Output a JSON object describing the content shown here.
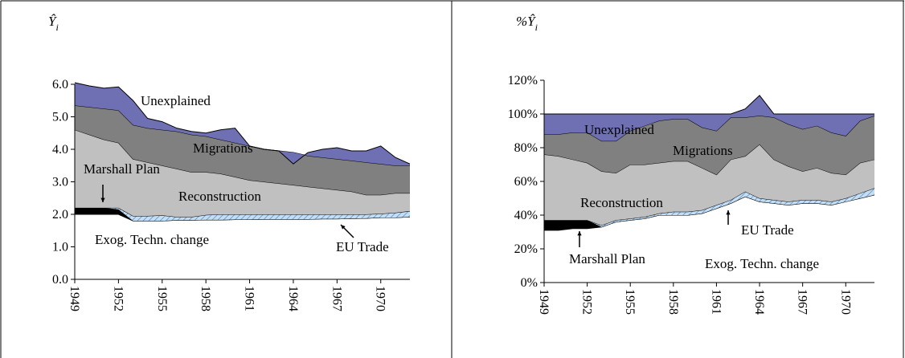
{
  "chart_data": [
    {
      "type": "area",
      "stacked": true,
      "y_title": "Ŷ",
      "y_title_sub": "i",
      "x": [
        1949,
        1950,
        1951,
        1952,
        1953,
        1954,
        1955,
        1956,
        1957,
        1958,
        1959,
        1960,
        1961,
        1962,
        1963,
        1964,
        1965,
        1966,
        1967,
        1968,
        1969,
        1970,
        1971,
        1972
      ],
      "xlim": [
        1949,
        1972
      ],
      "xticks": [
        1949,
        1952,
        1955,
        1958,
        1961,
        1964,
        1967,
        1970
      ],
      "ylim": [
        0,
        6
      ],
      "yticks": [
        {
          "value": 0,
          "label": "0.0"
        },
        {
          "value": 1,
          "label": "1.0"
        },
        {
          "value": 2,
          "label": "2.0"
        },
        {
          "value": 3,
          "label": "3.0"
        },
        {
          "value": 4,
          "label": "4.0"
        },
        {
          "value": 5,
          "label": "5.0"
        },
        {
          "value": 6,
          "label": "6.0"
        }
      ],
      "series": [
        {
          "name": "Exog. Techn. change",
          "color": "#ffffff",
          "values": [
            2.0,
            2.0,
            2.0,
            2.0,
            1.8,
            1.8,
            1.8,
            1.82,
            1.82,
            1.83,
            1.83,
            1.84,
            1.84,
            1.85,
            1.85,
            1.85,
            1.85,
            1.86,
            1.86,
            1.87,
            1.88,
            1.9,
            1.9,
            1.92
          ]
        },
        {
          "name": "Marshall Plan",
          "color": "#000000",
          "values": [
            0.2,
            0.2,
            0.2,
            0.15,
            0,
            0,
            0,
            0,
            0,
            0,
            0,
            0,
            0,
            0,
            0,
            0,
            0,
            0,
            0,
            0,
            0,
            0,
            0,
            0
          ]
        },
        {
          "name": "EU Trade",
          "color": "#c5def2",
          "hatch": true,
          "values": [
            0,
            0,
            0,
            0.05,
            0.15,
            0.15,
            0.17,
            0.1,
            0.1,
            0.15,
            0.17,
            0.16,
            0.16,
            0.15,
            0.15,
            0.15,
            0.15,
            0.14,
            0.14,
            0.13,
            0.12,
            0.12,
            0.15,
            0.18
          ]
        },
        {
          "name": "Reconstruction",
          "color": "#c0c0c0",
          "values": [
            2.4,
            2.25,
            2.1,
            2.0,
            1.75,
            1.65,
            1.53,
            1.48,
            1.38,
            1.32,
            1.25,
            1.15,
            1.05,
            1.0,
            0.95,
            0.9,
            0.85,
            0.8,
            0.75,
            0.7,
            0.6,
            0.58,
            0.6,
            0.55
          ]
        },
        {
          "name": "Migrations",
          "color": "#808080",
          "values": [
            0.75,
            0.85,
            0.95,
            1.0,
            1.05,
            1.05,
            1.1,
            1.15,
            1.15,
            1.1,
            1.05,
            1.05,
            1.05,
            1.0,
            1.0,
            1.0,
            0.95,
            0.95,
            0.95,
            0.95,
            1.0,
            0.95,
            0.85,
            0.85
          ]
        },
        {
          "name": "Unexplained",
          "color": "#6f6fb3",
          "values": [
            0.7,
            0.65,
            0.63,
            0.72,
            0.75,
            0.3,
            0.25,
            0.1,
            0.1,
            0.1,
            0.3,
            0.45,
            0,
            0,
            0,
            -0.35,
            0.1,
            0.25,
            0.35,
            0.3,
            0.35,
            0.55,
            0.25,
            0.05
          ]
        }
      ]
    },
    {
      "type": "area",
      "stacked": true,
      "y_title": "%Ŷ",
      "y_title_sub": "i",
      "x": [
        1949,
        1950,
        1951,
        1952,
        1953,
        1954,
        1955,
        1956,
        1957,
        1958,
        1959,
        1960,
        1961,
        1962,
        1963,
        1964,
        1965,
        1966,
        1967,
        1968,
        1969,
        1970,
        1971,
        1972
      ],
      "xlim": [
        1949,
        1972
      ],
      "xticks": [
        1949,
        1952,
        1955,
        1958,
        1961,
        1964,
        1967,
        1970
      ],
      "ylim": [
        0,
        120
      ],
      "yticks": [
        {
          "value": 0,
          "label": "0%"
        },
        {
          "value": 20,
          "label": "20%"
        },
        {
          "value": 40,
          "label": "40%"
        },
        {
          "value": 60,
          "label": "60%"
        },
        {
          "value": 80,
          "label": "80%"
        },
        {
          "value": 100,
          "label": "100%"
        },
        {
          "value": 120,
          "label": "120%"
        }
      ],
      "series": [
        {
          "name": "Exog. Techn. change",
          "color": "#ffffff",
          "values": [
            31,
            31,
            32,
            32,
            33,
            36,
            37,
            38,
            40,
            40,
            40,
            41,
            44,
            47,
            51,
            48,
            47,
            46,
            47,
            47,
            46,
            48,
            50,
            52
          ]
        },
        {
          "name": "Marshall Plan",
          "color": "#000000",
          "values": [
            6,
            6,
            5,
            5,
            0,
            0,
            0,
            0,
            0,
            0,
            0,
            0,
            0,
            0,
            0,
            0,
            0,
            0,
            0,
            0,
            0,
            0,
            0,
            0
          ]
        },
        {
          "name": "EU Trade",
          "color": "#c5def2",
          "hatch": true,
          "values": [
            0,
            0,
            0,
            0,
            1,
            1,
            1,
            1,
            1,
            2,
            2,
            2,
            2,
            2,
            3,
            2,
            2,
            2,
            2,
            2,
            2,
            2,
            3,
            4
          ]
        },
        {
          "name": "Reconstruction",
          "color": "#c0c0c0",
          "values": [
            39,
            38,
            36,
            34,
            32,
            28,
            32,
            31,
            30,
            30,
            30,
            25,
            18,
            24,
            21,
            32,
            24,
            21,
            17,
            19,
            17,
            14,
            18,
            17
          ]
        },
        {
          "name": "Migrations",
          "color": "#808080",
          "values": [
            12,
            13,
            16,
            18,
            18,
            19,
            20,
            23,
            25,
            25,
            25,
            24,
            26,
            25,
            23,
            17,
            25,
            25,
            25,
            25,
            24,
            23,
            25,
            26
          ]
        },
        {
          "name": "Unexplained",
          "color": "#6f6fb3",
          "values": [
            12,
            12,
            11,
            11,
            16,
            16,
            10,
            7,
            4,
            3,
            3,
            8,
            10,
            2,
            5,
            12,
            2,
            6,
            9,
            7,
            11,
            13,
            4,
            1
          ]
        }
      ]
    }
  ]
}
